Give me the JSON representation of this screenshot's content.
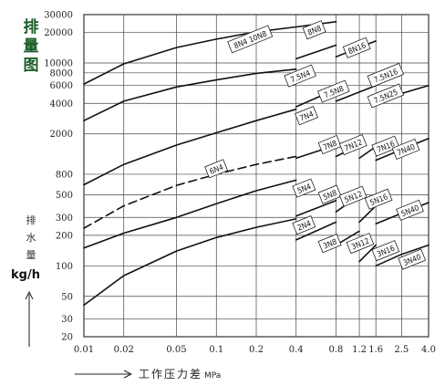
{
  "chart_data": {
    "type": "line",
    "title": "排量图",
    "ylabel": "排水量",
    "yunit": "kg/h",
    "xlabel": "工作压力差",
    "xunit": "MPa",
    "x_scale": "log",
    "y_scale": "log",
    "xlim": [
      0.01,
      4.0
    ],
    "ylim": [
      20,
      30000
    ],
    "grid": true,
    "legend": "none",
    "x_ticks": [
      {
        "v": 0.01,
        "label": "0.01"
      },
      {
        "v": 0.02,
        "label": "0.02"
      },
      {
        "v": 0.05,
        "label": "0.05"
      },
      {
        "v": 0.1,
        "label": "0.1"
      },
      {
        "v": 0.2,
        "label": "0.2"
      },
      {
        "v": 0.4,
        "label": "0.4"
      },
      {
        "v": 0.8,
        "label": "0.8"
      },
      {
        "v": 1.2,
        "label": "1.2"
      },
      {
        "v": 1.6,
        "label": "1.6"
      },
      {
        "v": 2.5,
        "label": "2.5"
      },
      {
        "v": 4.0,
        "label": "4.0"
      }
    ],
    "y_ticks": [
      {
        "v": 30000,
        "label": "30000"
      },
      {
        "v": 20000,
        "label": "20000"
      },
      {
        "v": 10000,
        "label": "10000"
      },
      {
        "v": 8000,
        "label": "8000"
      },
      {
        "v": 6000,
        "label": "6000"
      },
      {
        "v": 4000,
        "label": "4000"
      },
      {
        "v": 2000,
        "label": "2000"
      },
      {
        "v": 800,
        "label": "800"
      },
      {
        "v": 500,
        "label": "500"
      },
      {
        "v": 300,
        "label": "300"
      },
      {
        "v": 200,
        "label": "200"
      },
      {
        "v": 100,
        "label": "100"
      },
      {
        "v": 50,
        "label": "50"
      },
      {
        "v": 30,
        "label": "30"
      },
      {
        "v": 20,
        "label": "20"
      }
    ],
    "series": [
      {
        "name": "8N4 10N8",
        "dashed": false,
        "x": [
          0.01,
          0.02,
          0.05,
          0.1,
          0.2,
          0.4,
          0.8
        ],
        "y": [
          6200,
          9800,
          14200,
          17200,
          20300,
          22700,
          25500
        ]
      },
      {
        "name": "7.5N4",
        "dashed": false,
        "x": [
          0.01,
          0.02,
          0.05,
          0.1,
          0.2,
          0.4
        ],
        "y": [
          2700,
          4200,
          5800,
          6800,
          7900,
          8700
        ]
      },
      {
        "name": "7N4",
        "dashed": false,
        "x": [
          0.01,
          0.02,
          0.05,
          0.1,
          0.2,
          0.4
        ],
        "y": [
          630,
          1000,
          1550,
          2050,
          2700,
          3500
        ]
      },
      {
        "name": "6N4",
        "dashed": true,
        "x": [
          0.01,
          0.02,
          0.05,
          0.1,
          0.2,
          0.4
        ],
        "y": [
          235,
          390,
          620,
          800,
          1000,
          1200
        ]
      },
      {
        "name": "5N4",
        "dashed": false,
        "x": [
          0.01,
          0.02,
          0.05,
          0.1,
          0.2,
          0.4
        ],
        "y": [
          150,
          210,
          300,
          410,
          550,
          700
        ]
      },
      {
        "name": "2N4",
        "dashed": false,
        "x": [
          0.01,
          0.02,
          0.05,
          0.1,
          0.2,
          0.4
        ],
        "y": [
          41,
          80,
          140,
          190,
          240,
          290
        ]
      },
      {
        "name": "8N8",
        "dashed": false,
        "x": [
          0.4,
          0.8
        ],
        "y": [
          11000,
          15000
        ]
      },
      {
        "name": "8N16",
        "dashed": false,
        "x": [
          0.8,
          1.6
        ],
        "y": [
          11500,
          16500
        ]
      },
      {
        "name": "7.5N8",
        "dashed": false,
        "x": [
          0.4,
          0.8
        ],
        "y": [
          3700,
          5500
        ]
      },
      {
        "name": "7.5N16",
        "dashed": false,
        "x": [
          0.8,
          1.6
        ],
        "y": [
          4200,
          6000
        ]
      },
      {
        "name": "7.5N25",
        "dashed": false,
        "x": [
          1.6,
          2.5,
          4.0
        ],
        "y": [
          4000,
          5000,
          6000
        ]
      },
      {
        "name": "7N8",
        "dashed": false,
        "x": [
          0.4,
          0.8
        ],
        "y": [
          1150,
          1550
        ]
      },
      {
        "name": "7N12",
        "dashed": false,
        "x": [
          0.8,
          1.2
        ],
        "y": [
          1200,
          1550
        ]
      },
      {
        "name": "7N16",
        "dashed": false,
        "x": [
          1.2,
          1.6
        ],
        "y": [
          1150,
          1500
        ]
      },
      {
        "name": "7N40",
        "dashed": false,
        "x": [
          1.6,
          2.5,
          4.0
        ],
        "y": [
          1100,
          1400,
          1800
        ]
      },
      {
        "name": "5N8",
        "dashed": false,
        "x": [
          0.4,
          0.8
        ],
        "y": [
          310,
          440
        ]
      },
      {
        "name": "5N12",
        "dashed": false,
        "x": [
          0.8,
          1.2
        ],
        "y": [
          340,
          500
        ]
      },
      {
        "name": "5N16",
        "dashed": false,
        "x": [
          1.2,
          1.6
        ],
        "y": [
          270,
          390
        ]
      },
      {
        "name": "5N40",
        "dashed": false,
        "x": [
          1.6,
          2.5,
          4.0
        ],
        "y": [
          260,
          330,
          420
        ]
      },
      {
        "name": "3N8",
        "dashed": false,
        "x": [
          0.4,
          0.8
        ],
        "y": [
          180,
          270
        ]
      },
      {
        "name": "3N12",
        "dashed": false,
        "x": [
          0.8,
          1.2
        ],
        "y": [
          160,
          220
        ]
      },
      {
        "name": "3N16",
        "dashed": false,
        "x": [
          1.2,
          1.6
        ],
        "y": [
          110,
          160
        ]
      },
      {
        "name": "3N40",
        "dashed": false,
        "x": [
          1.6,
          2.5,
          4.0
        ],
        "y": [
          100,
          130,
          160
        ]
      }
    ],
    "labels": [
      {
        "text": "8N4 10N8",
        "x": 0.18,
        "y": 17000
      },
      {
        "text": "8N8",
        "x": 0.55,
        "y": 21000
      },
      {
        "text": "8N16",
        "x": 1.15,
        "y": 14000
      },
      {
        "text": "7.5N4",
        "x": 0.43,
        "y": 7400
      },
      {
        "text": "7.5N8",
        "x": 0.77,
        "y": 5200
      },
      {
        "text": "7.5N16",
        "x": 1.9,
        "y": 7500
      },
      {
        "text": "7.5N25",
        "x": 1.9,
        "y": 4700
      },
      {
        "text": "7N4",
        "x": 0.48,
        "y": 3000
      },
      {
        "text": "7N8",
        "x": 0.72,
        "y": 1550
      },
      {
        "text": "7N12",
        "x": 1.08,
        "y": 1550
      },
      {
        "text": "7N16",
        "x": 1.9,
        "y": 1500
      },
      {
        "text": "7N40",
        "x": 2.7,
        "y": 1400
      },
      {
        "text": "6N4",
        "x": 0.1,
        "y": 900
      },
      {
        "text": "5N4",
        "x": 0.46,
        "y": 580
      },
      {
        "text": "5N8",
        "x": 0.72,
        "y": 500
      },
      {
        "text": "5N12",
        "x": 1.08,
        "y": 480
      },
      {
        "text": "5N16",
        "x": 1.68,
        "y": 450
      },
      {
        "text": "5N40",
        "x": 2.9,
        "y": 350
      },
      {
        "text": "2N4",
        "x": 0.46,
        "y": 250
      },
      {
        "text": "3N8",
        "x": 0.72,
        "y": 165
      },
      {
        "text": "3N12",
        "x": 1.22,
        "y": 165
      },
      {
        "text": "3N16",
        "x": 1.9,
        "y": 140
      },
      {
        "text": "3N40",
        "x": 3.0,
        "y": 115
      }
    ]
  }
}
